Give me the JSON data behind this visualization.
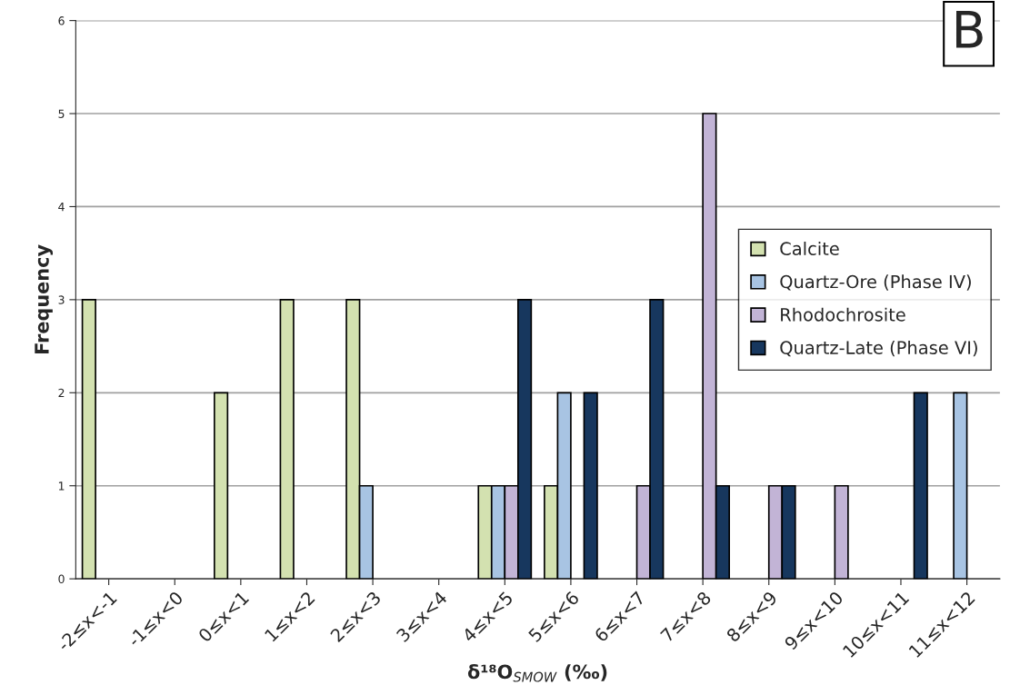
{
  "chart_data": {
    "type": "bar",
    "categories": [
      "-2≤x<-1",
      "-1≤x<0",
      "0≤x<1",
      "1≤x<2",
      "2≤x<3",
      "3≤x<4",
      "4≤x<5",
      "5≤x<6",
      "6≤x<7",
      "7≤x<8",
      "8≤x<9",
      "9≤x<10",
      "10≤x<11",
      "11≤x<12"
    ],
    "series": [
      {
        "name": "Calcite",
        "color": "#d3e1b0",
        "values": [
          3,
          null,
          2,
          3,
          3,
          null,
          1,
          1,
          null,
          null,
          null,
          null,
          null,
          null
        ]
      },
      {
        "name": "Quartz-Ore (Phase IV)",
        "color": "#a8c4e3",
        "values": [
          null,
          null,
          null,
          null,
          1,
          null,
          1,
          2,
          null,
          null,
          null,
          null,
          null,
          2
        ]
      },
      {
        "name": "Rhodochrosite",
        "color": "#c2b4d6",
        "values": [
          null,
          null,
          null,
          null,
          null,
          null,
          1,
          null,
          1,
          5,
          1,
          1,
          null,
          null
        ]
      },
      {
        "name": "Quartz-Late (Phase VI)",
        "color": "#17375e",
        "values": [
          null,
          null,
          null,
          null,
          null,
          null,
          3,
          2,
          3,
          1,
          1,
          null,
          2,
          null
        ]
      }
    ],
    "xlabel": "δ¹⁸O$_{SMOW}$ (‰)",
    "ylabel": "Frequency",
    "ylim": [
      0,
      6
    ],
    "yticks": [
      0,
      1,
      2,
      3,
      4,
      5,
      6
    ],
    "grid": "y",
    "legend": "right",
    "annotations": [
      "B"
    ]
  }
}
